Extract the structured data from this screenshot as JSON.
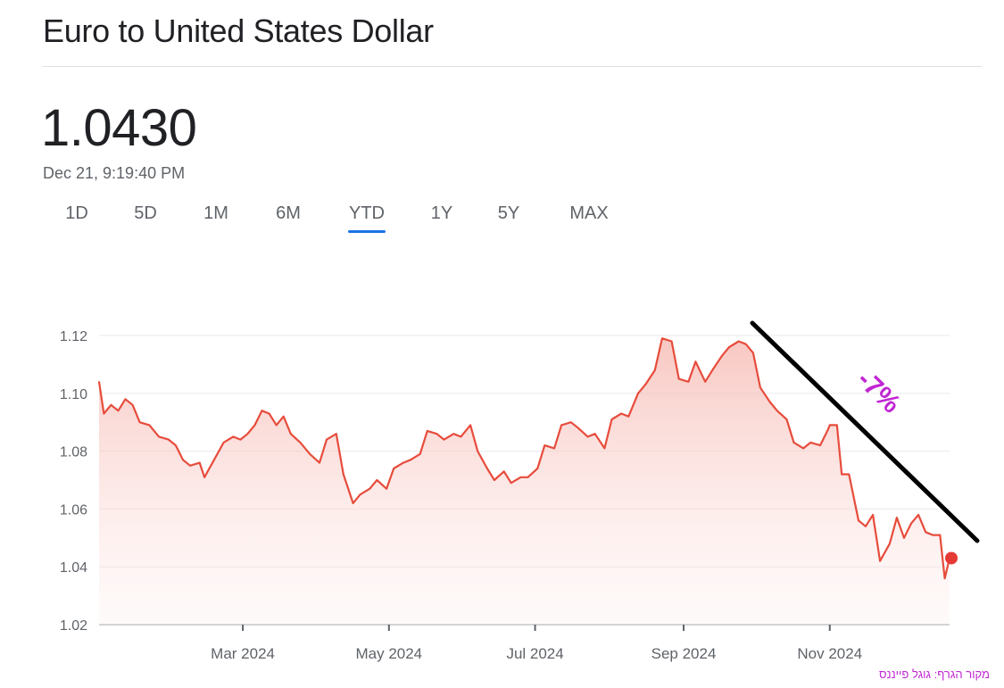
{
  "header": {
    "title": "Euro to United States Dollar",
    "price": "1.0430",
    "timestamp": "Dec 21, 9:19:40 PM"
  },
  "tabs": [
    {
      "label": "1D",
      "active": false
    },
    {
      "label": "5D",
      "active": false
    },
    {
      "label": "1M",
      "active": false
    },
    {
      "label": "6M",
      "active": false
    },
    {
      "label": "YTD",
      "active": true
    },
    {
      "label": "1Y",
      "active": false
    },
    {
      "label": "5Y",
      "active": false
    },
    {
      "label": "MAX",
      "active": false
    }
  ],
  "annotation": {
    "label": "-7%",
    "trend_line_color": "#000000",
    "label_color": "#c026d3"
  },
  "source_note": "מקור הגרף: גוגל פייננס",
  "colors": {
    "accent": "#1a73e8",
    "line": "#e74c3c",
    "fill_top": "#f6b5ae",
    "grid": "#e8eaed"
  },
  "chart_data": {
    "type": "area",
    "ylim": [
      1.02,
      1.12
    ],
    "yticks": [
      "1.12",
      "1.10",
      "1.08",
      "1.06",
      "1.04",
      "1.02"
    ],
    "xticks": [
      {
        "label": "Mar 2024",
        "date": "2024-03-01"
      },
      {
        "label": "May 2024",
        "date": "2024-05-01"
      },
      {
        "label": "Jul 2024",
        "date": "2024-07-01"
      },
      {
        "label": "Sep 2024",
        "date": "2024-09-01"
      },
      {
        "label": "Nov 2024",
        "date": "2024-11-01"
      }
    ],
    "series": [
      {
        "color": "#e74c3c",
        "points": [
          [
            "2024-01-01",
            1.104
          ],
          [
            "2024-01-03",
            1.093
          ],
          [
            "2024-01-06",
            1.096
          ],
          [
            "2024-01-09",
            1.094
          ],
          [
            "2024-01-12",
            1.098
          ],
          [
            "2024-01-15",
            1.096
          ],
          [
            "2024-01-18",
            1.09
          ],
          [
            "2024-01-22",
            1.089
          ],
          [
            "2024-01-26",
            1.085
          ],
          [
            "2024-01-30",
            1.084
          ],
          [
            "2024-02-02",
            1.082
          ],
          [
            "2024-02-05",
            1.077
          ],
          [
            "2024-02-08",
            1.075
          ],
          [
            "2024-02-12",
            1.076
          ],
          [
            "2024-02-14",
            1.071
          ],
          [
            "2024-02-18",
            1.077
          ],
          [
            "2024-02-22",
            1.083
          ],
          [
            "2024-02-26",
            1.085
          ],
          [
            "2024-02-29",
            1.084
          ],
          [
            "2024-03-03",
            1.086
          ],
          [
            "2024-03-06",
            1.089
          ],
          [
            "2024-03-09",
            1.094
          ],
          [
            "2024-03-12",
            1.093
          ],
          [
            "2024-03-15",
            1.089
          ],
          [
            "2024-03-18",
            1.092
          ],
          [
            "2024-03-21",
            1.086
          ],
          [
            "2024-03-25",
            1.083
          ],
          [
            "2024-03-29",
            1.079
          ],
          [
            "2024-04-02",
            1.076
          ],
          [
            "2024-04-05",
            1.084
          ],
          [
            "2024-04-09",
            1.086
          ],
          [
            "2024-04-12",
            1.072
          ],
          [
            "2024-04-16",
            1.062
          ],
          [
            "2024-04-19",
            1.065
          ],
          [
            "2024-04-23",
            1.067
          ],
          [
            "2024-04-26",
            1.07
          ],
          [
            "2024-04-30",
            1.067
          ],
          [
            "2024-05-03",
            1.074
          ],
          [
            "2024-05-07",
            1.076
          ],
          [
            "2024-05-10",
            1.077
          ],
          [
            "2024-05-14",
            1.079
          ],
          [
            "2024-05-17",
            1.087
          ],
          [
            "2024-05-21",
            1.086
          ],
          [
            "2024-05-24",
            1.084
          ],
          [
            "2024-05-28",
            1.086
          ],
          [
            "2024-05-31",
            1.085
          ],
          [
            "2024-06-04",
            1.089
          ],
          [
            "2024-06-07",
            1.08
          ],
          [
            "2024-06-11",
            1.074
          ],
          [
            "2024-06-14",
            1.07
          ],
          [
            "2024-06-18",
            1.073
          ],
          [
            "2024-06-21",
            1.069
          ],
          [
            "2024-06-25",
            1.071
          ],
          [
            "2024-06-28",
            1.071
          ],
          [
            "2024-07-02",
            1.074
          ],
          [
            "2024-07-05",
            1.082
          ],
          [
            "2024-07-09",
            1.081
          ],
          [
            "2024-07-12",
            1.089
          ],
          [
            "2024-07-16",
            1.09
          ],
          [
            "2024-07-19",
            1.088
          ],
          [
            "2024-07-23",
            1.085
          ],
          [
            "2024-07-26",
            1.086
          ],
          [
            "2024-07-30",
            1.081
          ],
          [
            "2024-08-02",
            1.091
          ],
          [
            "2024-08-06",
            1.093
          ],
          [
            "2024-08-09",
            1.092
          ],
          [
            "2024-08-13",
            1.1
          ],
          [
            "2024-08-16",
            1.103
          ],
          [
            "2024-08-20",
            1.108
          ],
          [
            "2024-08-23",
            1.119
          ],
          [
            "2024-08-27",
            1.118
          ],
          [
            "2024-08-30",
            1.105
          ],
          [
            "2024-09-03",
            1.104
          ],
          [
            "2024-09-06",
            1.111
          ],
          [
            "2024-09-10",
            1.104
          ],
          [
            "2024-09-13",
            1.108
          ],
          [
            "2024-09-17",
            1.113
          ],
          [
            "2024-09-20",
            1.116
          ],
          [
            "2024-09-24",
            1.118
          ],
          [
            "2024-09-27",
            1.117
          ],
          [
            "2024-09-30",
            1.114
          ],
          [
            "2024-10-03",
            1.102
          ],
          [
            "2024-10-07",
            1.097
          ],
          [
            "2024-10-10",
            1.094
          ],
          [
            "2024-10-14",
            1.091
          ],
          [
            "2024-10-17",
            1.083
          ],
          [
            "2024-10-21",
            1.081
          ],
          [
            "2024-10-24",
            1.083
          ],
          [
            "2024-10-28",
            1.082
          ],
          [
            "2024-10-31",
            1.087
          ],
          [
            "2024-11-01",
            1.089
          ],
          [
            "2024-11-04",
            1.089
          ],
          [
            "2024-11-06",
            1.072
          ],
          [
            "2024-11-09",
            1.072
          ],
          [
            "2024-11-13",
            1.056
          ],
          [
            "2024-11-16",
            1.054
          ],
          [
            "2024-11-19",
            1.058
          ],
          [
            "2024-11-22",
            1.042
          ],
          [
            "2024-11-26",
            1.048
          ],
          [
            "2024-11-29",
            1.057
          ],
          [
            "2024-12-02",
            1.05
          ],
          [
            "2024-12-05",
            1.055
          ],
          [
            "2024-12-08",
            1.058
          ],
          [
            "2024-12-11",
            1.052
          ],
          [
            "2024-12-14",
            1.051
          ],
          [
            "2024-12-17",
            1.051
          ],
          [
            "2024-12-19",
            1.036
          ],
          [
            "2024-12-21",
            1.043
          ]
        ]
      }
    ]
  }
}
